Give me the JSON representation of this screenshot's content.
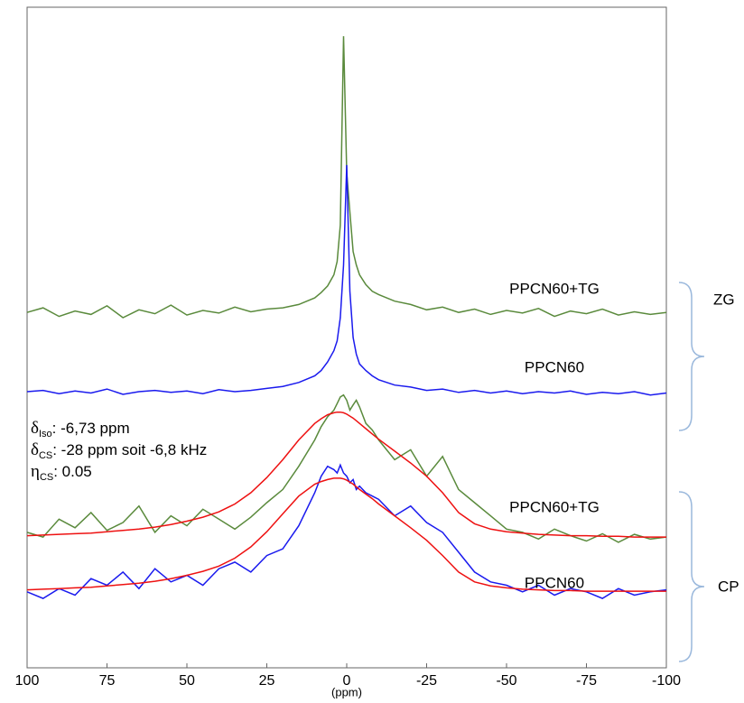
{
  "chart_data": {
    "type": "line",
    "xlabel": "(ppm)",
    "xlim": [
      100,
      -100
    ],
    "xticks": [
      100,
      75,
      50,
      25,
      0,
      -25,
      -50,
      -75,
      -100
    ],
    "ylim": [
      0,
      100
    ],
    "brackets": [
      "ZG",
      "CP"
    ],
    "annotations": [
      {
        "symbol": "δ",
        "sub": "Iso",
        "text": ": -6,73 ppm"
      },
      {
        "symbol": "δ",
        "sub": "CS",
        "text": ":  -28 ppm soit -6,8 kHz"
      },
      {
        "symbol": "η",
        "sub": "CS",
        "text": ": 0.05"
      }
    ],
    "x": [
      100,
      95,
      90,
      85,
      80,
      75,
      70,
      65,
      60,
      55,
      50,
      45,
      40,
      35,
      30,
      25,
      20,
      15,
      10,
      8,
      6,
      4,
      3,
      2,
      1,
      0,
      -1,
      -2,
      -3,
      -4,
      -6,
      -8,
      -10,
      -15,
      -20,
      -25,
      -30,
      -35,
      -40,
      -45,
      -50,
      -55,
      -60,
      -65,
      -70,
      -75,
      -80,
      -85,
      -90,
      -95,
      -100
    ],
    "series": [
      {
        "name": "PPCN60+TG",
        "color": "#5a8a3c",
        "values": [
          53.8,
          54.5,
          53.2,
          54.0,
          53.5,
          54.8,
          53.0,
          54.2,
          53.6,
          54.9,
          53.4,
          54.1,
          53.7,
          54.6,
          53.9,
          54.3,
          54.5,
          55.0,
          56.0,
          56.8,
          57.8,
          59.5,
          61.5,
          67,
          95.6,
          75,
          69,
          63,
          61,
          59.5,
          58,
          57,
          56.5,
          55.5,
          55.0,
          54.2,
          54.6,
          53.8,
          54.3,
          53.5,
          54.1,
          53.7,
          54.4,
          53.2,
          54.0,
          53.6,
          54.3,
          53.4,
          53.9,
          53.5,
          53.8
        ]
      },
      {
        "name": "PPCN60",
        "color": "#1a1aee",
        "values": [
          41.8,
          42.0,
          41.5,
          41.9,
          41.6,
          42.2,
          41.4,
          41.8,
          42.0,
          41.7,
          41.9,
          41.5,
          42.1,
          41.8,
          42.0,
          42.3,
          42.6,
          43.2,
          44.2,
          45,
          46.3,
          48,
          49.5,
          53,
          61,
          76.1,
          57,
          50,
          47.5,
          46,
          45,
          44.2,
          43.6,
          42.8,
          42.5,
          42.0,
          42.2,
          41.7,
          42.0,
          41.6,
          41.9,
          41.5,
          41.8,
          41.6,
          41.9,
          41.4,
          41.7,
          41.5,
          41.8,
          41.3,
          41.6
        ]
      },
      {
        "name": "PPCN60+TG",
        "color": "#5a8a3c",
        "values": [
          20.5,
          19.8,
          22.5,
          21.2,
          23.5,
          20.8,
          22.0,
          24.5,
          20.5,
          23.0,
          21.5,
          24.0,
          22.5,
          21.0,
          22.8,
          25.0,
          27.0,
          30.5,
          34.5,
          36.5,
          38,
          39,
          40,
          41,
          41.3,
          40.5,
          39,
          39.8,
          40.5,
          39.5,
          37,
          36,
          34.5,
          31.5,
          33,
          29,
          32,
          27,
          25,
          23,
          21,
          20.5,
          19.5,
          21.0,
          20.0,
          19.2,
          20.3,
          19.0,
          20.2,
          19.5,
          19.8
        ]
      },
      {
        "color": "#ee1111",
        "values": [
          20.0,
          20.1,
          20.2,
          20.3,
          20.4,
          20.6,
          20.8,
          21.0,
          21.3,
          21.7,
          22.2,
          22.8,
          23.6,
          24.8,
          26.5,
          28.8,
          31.5,
          34.5,
          37.0,
          37.7,
          38.3,
          38.6,
          38.7,
          38.7,
          38.6,
          38.4,
          38.1,
          37.8,
          37.4,
          37.0,
          36.2,
          35.4,
          34.6,
          32.8,
          31.0,
          29.0,
          26.5,
          23.5,
          21.8,
          21.0,
          20.6,
          20.4,
          20.2,
          20.1,
          20.0,
          20.0,
          19.9,
          19.9,
          19.8,
          19.8,
          19.8
        ]
      },
      {
        "name": "PPCN60",
        "color": "#1a1aee",
        "values": [
          11.5,
          10.5,
          12.0,
          11.0,
          13.5,
          12.5,
          14.5,
          12.0,
          15.0,
          13.0,
          14.0,
          12.5,
          15.0,
          16.0,
          14.5,
          17.0,
          18.0,
          21.5,
          26.5,
          29,
          30.5,
          30,
          29.5,
          30.7,
          29.5,
          29,
          28,
          28.5,
          27,
          27.5,
          26.5,
          26,
          25.5,
          23,
          24.5,
          22,
          20.5,
          17.5,
          14.5,
          13,
          12.5,
          11.5,
          12.5,
          11.0,
          12.0,
          11.5,
          10.5,
          12.0,
          11.0,
          11.5,
          11.8
        ]
      },
      {
        "color": "#ee1111",
        "values": [
          11.8,
          11.9,
          12.0,
          12.1,
          12.2,
          12.4,
          12.6,
          12.8,
          13.1,
          13.5,
          14.0,
          14.6,
          15.4,
          16.6,
          18.3,
          20.6,
          23.3,
          26.0,
          27.8,
          28.2,
          28.5,
          28.7,
          28.7,
          28.7,
          28.6,
          28.4,
          28.1,
          27.8,
          27.4,
          27.0,
          26.3,
          25.6,
          24.8,
          23.0,
          21.2,
          19.3,
          17.0,
          14.5,
          13.0,
          12.4,
          12.1,
          11.9,
          11.8,
          11.7,
          11.7,
          11.6,
          11.6,
          11.6,
          11.6,
          11.6,
          11.6
        ]
      }
    ]
  }
}
